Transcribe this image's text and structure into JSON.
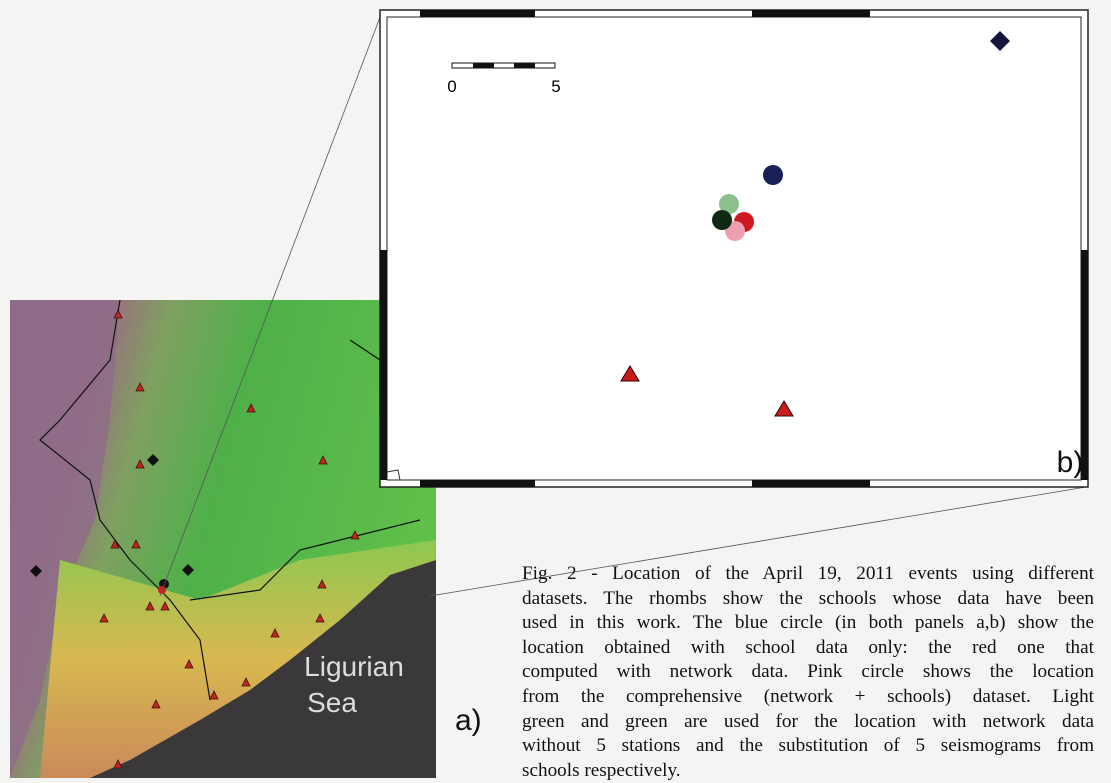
{
  "panel_b": {
    "scale_labels": [
      "0",
      "5"
    ],
    "label": "b)"
  },
  "panel_a": {
    "sea_label": [
      "Ligurian",
      "Sea"
    ],
    "label": "a)"
  },
  "caption": {
    "lines": [
      "Fig. 2 - Location of the April 19, 2011 events using different",
      "datasets. The rhombs show the schools whose data have been",
      "used in this work. The blue circle (in both panels a,b) show the",
      "location obtained with school data only: the red one that",
      "computed with network data. Pink circle shows the location",
      "from the comprehensive (network + schools) dataset. Light",
      "green and green are used for the location with network data",
      "without 5 stations and the substitution of 5 seismograms from",
      "schools respectively."
    ]
  }
}
